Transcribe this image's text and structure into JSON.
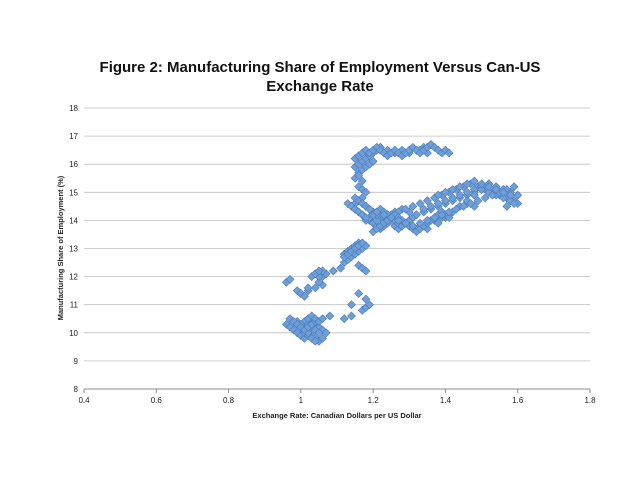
{
  "chart_data": {
    "type": "scatter",
    "title_lines": [
      "Figure 2: Manufacturing Share of Employment Versus Can-US",
      "Exchange Rate"
    ],
    "xlabel": "Exchange Rate: Canadian Dollars per US Dollar",
    "ylabel": "Manufacturing Share of Employment (%)",
    "xlim": [
      0.4,
      1.8
    ],
    "ylim": [
      8,
      18
    ],
    "x_ticks": [
      0.4,
      0.6,
      0.8,
      1,
      1.2,
      1.4,
      1.6,
      1.8
    ],
    "y_ticks": [
      8,
      9,
      10,
      11,
      12,
      13,
      14,
      15,
      16,
      17,
      18
    ],
    "grid": "horizontal",
    "legend": "none",
    "marker_color": "#6f9fd8",
    "marker_edge_color": "#4a79b8",
    "grid_color": "#bfbfbf",
    "series": [
      {
        "x": [
          0.96,
          0.97,
          0.98,
          0.99,
          1.0,
          1.01,
          0.98,
          0.99,
          1.0,
          1.01,
          1.02,
          1.03,
          1.04,
          1.05,
          1.06,
          1.02,
          1.03,
          1.04,
          1.05,
          1.06,
          1.07,
          1.01,
          1.02,
          1.03,
          1.04,
          1.05,
          1.0,
          1.01,
          1.02,
          1.03,
          1.04,
          0.99,
          1.0,
          1.01,
          1.02,
          0.97,
          0.98,
          0.99,
          1.0,
          1.01,
          1.02,
          1.03,
          1.04,
          1.02,
          1.03,
          1.04,
          1.05,
          1.06,
          1.08,
          1.12,
          1.14,
          1.0,
          1.02,
          1.04,
          1.06,
          0.99,
          1.0,
          1.01,
          1.02,
          1.05,
          1.06,
          1.07,
          1.06,
          1.05,
          1.09,
          1.11,
          1.12,
          1.13,
          1.14,
          1.15,
          1.16,
          1.17,
          1.18,
          1.16,
          1.17,
          1.18,
          1.12,
          1.13,
          1.14,
          1.15,
          1.16,
          1.12,
          1.13,
          1.14,
          1.15,
          1.16,
          1.17,
          0.96,
          0.97,
          1.03,
          1.04,
          1.05,
          1.14,
          1.15,
          1.16,
          1.17,
          1.18,
          1.15,
          1.16,
          1.17,
          1.18,
          1.19,
          1.2,
          1.21,
          1.22,
          1.23,
          1.24,
          1.25,
          1.26,
          1.27,
          1.28,
          1.29,
          1.3,
          1.22,
          1.24,
          1.26,
          1.28,
          1.3,
          1.21,
          1.23,
          1.25,
          1.27,
          1.29,
          1.31,
          1.33,
          1.35,
          1.37,
          1.39,
          1.41,
          1.43,
          1.45,
          1.47,
          1.49,
          1.51,
          1.53,
          1.55,
          1.57,
          1.59,
          1.32,
          1.34,
          1.36,
          1.38,
          1.4,
          1.42,
          1.44,
          1.46,
          1.48,
          1.5,
          1.52,
          1.54,
          1.56,
          1.58,
          1.6,
          1.33,
          1.35,
          1.37,
          1.39,
          1.41,
          1.34,
          1.36,
          1.38,
          1.4,
          1.42,
          1.44,
          1.46,
          1.48,
          1.5,
          1.52,
          1.54,
          1.56,
          1.58,
          1.46,
          1.48,
          1.35,
          1.38,
          1.4,
          1.42,
          1.44,
          1.46,
          1.48,
          1.5,
          1.52,
          1.54,
          1.56,
          1.58,
          1.6,
          1.57,
          1.59,
          1.15,
          1.16,
          1.17,
          1.18,
          1.19,
          1.2,
          1.21,
          1.22,
          1.24,
          1.26,
          1.28,
          1.3,
          1.32,
          1.34,
          1.36,
          1.16,
          1.17,
          1.18,
          1.19,
          1.2,
          1.22,
          1.33,
          1.35,
          1.15,
          1.16,
          1.17,
          1.16,
          1.17,
          1.18,
          1.15,
          1.16,
          1.17,
          1.18,
          1.19,
          1.2,
          1.21,
          1.18,
          1.19,
          1.2,
          1.21,
          1.22,
          1.23,
          1.24,
          1.25,
          1.26,
          1.27,
          1.28,
          1.29,
          1.3,
          1.31,
          1.32,
          1.2,
          1.21,
          1.22,
          1.23,
          1.24,
          1.25,
          1.26,
          1.27,
          1.28,
          1.29,
          1.3,
          1.31,
          1.32,
          1.33,
          1.34,
          1.35,
          1.36,
          1.37,
          1.38,
          1.39,
          1.4,
          1.41,
          1.19,
          1.21,
          1.23,
          1.25,
          1.27,
          1.29,
          1.31,
          1.33,
          1.35,
          1.37,
          1.39,
          1.41,
          1.43,
          1.45,
          1.47,
          1.49,
          1.51,
          1.53,
          1.55,
          1.57,
          1.59,
          1.38,
          1.4,
          1.42,
          1.44,
          1.46,
          1.48,
          1.5,
          1.52,
          1.54,
          1.56,
          1.58,
          1.14,
          1.16,
          1.18,
          1.17,
          1.18,
          1.19,
          1.13,
          1.14,
          1.15,
          1.16,
          1.17,
          1.18,
          1.15,
          1.16,
          1.17,
          1.18,
          1.19,
          1.2,
          1.21,
          1.22,
          1.23,
          1.24,
          1.25,
          1.26,
          1.27,
          1.28,
          1.29,
          1.3,
          1.31,
          1.32,
          1.33,
          1.34,
          1.35,
          1.36,
          1.37,
          1.38,
          1.39,
          1.4,
          1.41
        ],
        "y": [
          10.3,
          10.2,
          10.1,
          10.0,
          9.9,
          9.8,
          10.4,
          10.3,
          10.2,
          10.1,
          10.0,
          9.9,
          9.8,
          9.7,
          9.8,
          10.5,
          10.4,
          10.3,
          10.2,
          10.1,
          10.0,
          10.4,
          10.3,
          10.2,
          10.1,
          10.0,
          10.2,
          10.0,
          9.9,
          9.8,
          9.7,
          10.4,
          10.3,
          10.1,
          10.0,
          10.5,
          10.4,
          10.3,
          10.2,
          10.1,
          10.2,
          10.3,
          10.4,
          10.5,
          10.6,
          10.5,
          10.4,
          10.5,
          10.6,
          10.5,
          10.6,
          11.4,
          11.5,
          11.6,
          11.7,
          11.5,
          11.4,
          11.3,
          11.6,
          11.8,
          12.0,
          12.1,
          12.2,
          12.0,
          12.2,
          12.3,
          12.5,
          12.6,
          12.7,
          12.8,
          12.9,
          13.0,
          13.1,
          12.4,
          12.3,
          12.2,
          12.8,
          12.9,
          13.0,
          13.1,
          13.2,
          12.7,
          12.8,
          12.9,
          13.0,
          13.1,
          13.2,
          11.8,
          11.9,
          12.0,
          12.1,
          12.2,
          14.5,
          14.6,
          14.7,
          14.8,
          14.5,
          14.4,
          14.3,
          14.2,
          14.1,
          14.0,
          13.9,
          13.8,
          13.7,
          13.8,
          13.9,
          14.0,
          13.8,
          13.7,
          13.8,
          13.9,
          14.0,
          14.1,
          14.2,
          14.3,
          14.4,
          14.3,
          14.0,
          14.1,
          14.2,
          14.3,
          14.4,
          14.5,
          14.6,
          14.7,
          14.8,
          14.9,
          15.0,
          15.1,
          15.2,
          15.3,
          15.2,
          15.1,
          15.0,
          14.9,
          14.8,
          14.7,
          14.2,
          14.3,
          14.4,
          14.5,
          14.6,
          14.7,
          14.8,
          14.9,
          15.0,
          15.1,
          15.0,
          14.9,
          14.8,
          14.7,
          14.6,
          13.8,
          13.9,
          14.0,
          14.1,
          14.2,
          14.4,
          14.5,
          14.6,
          14.7,
          14.8,
          14.9,
          15.0,
          15.1,
          15.2,
          15.3,
          15.2,
          15.1,
          15.0,
          14.6,
          14.5,
          13.7,
          13.9,
          14.1,
          14.3,
          14.5,
          14.7,
          14.9,
          15.1,
          15.3,
          15.2,
          15.1,
          15.0,
          14.9,
          14.5,
          14.6,
          15.9,
          16.0,
          16.1,
          16.2,
          16.3,
          16.4,
          16.5,
          16.6,
          16.5,
          16.4,
          16.5,
          16.4,
          16.5,
          16.6,
          16.7,
          15.7,
          15.8,
          15.9,
          16.0,
          16.1,
          16.6,
          16.5,
          16.4,
          15.5,
          15.6,
          15.4,
          15.2,
          15.1,
          15.0,
          14.8,
          14.7,
          14.6,
          14.5,
          14.4,
          14.3,
          14.2,
          14.0,
          14.1,
          14.2,
          14.3,
          14.4,
          14.3,
          14.2,
          14.1,
          14.0,
          13.9,
          13.8,
          13.9,
          14.0,
          14.1,
          14.2,
          13.6,
          13.7,
          13.8,
          13.9,
          14.0,
          14.1,
          14.2,
          14.1,
          14.0,
          13.9,
          13.8,
          13.7,
          13.6,
          13.7,
          13.8,
          13.9,
          14.0,
          14.1,
          14.2,
          14.3,
          14.2,
          14.1,
          14.4,
          14.3,
          14.2,
          14.1,
          14.0,
          13.9,
          13.8,
          13.9,
          14.0,
          14.1,
          14.2,
          14.3,
          14.4,
          14.5,
          14.6,
          14.7,
          14.8,
          14.9,
          15.0,
          15.1,
          15.2,
          14.9,
          15.0,
          15.1,
          15.2,
          15.3,
          15.4,
          15.3,
          15.2,
          15.1,
          15.0,
          14.9,
          11.0,
          11.4,
          11.2,
          10.8,
          10.9,
          11.0,
          14.6,
          14.5,
          14.4,
          14.3,
          14.2,
          14.1,
          16.2,
          16.3,
          16.4,
          16.5,
          16.4,
          16.5,
          16.6,
          16.5,
          16.4,
          16.3,
          16.4,
          16.5,
          16.4,
          16.3,
          16.4,
          16.5,
          16.6,
          16.5,
          16.4,
          16.5,
          16.6,
          16.7,
          16.6,
          16.5,
          16.4,
          16.5,
          16.4
        ]
      }
    ]
  }
}
